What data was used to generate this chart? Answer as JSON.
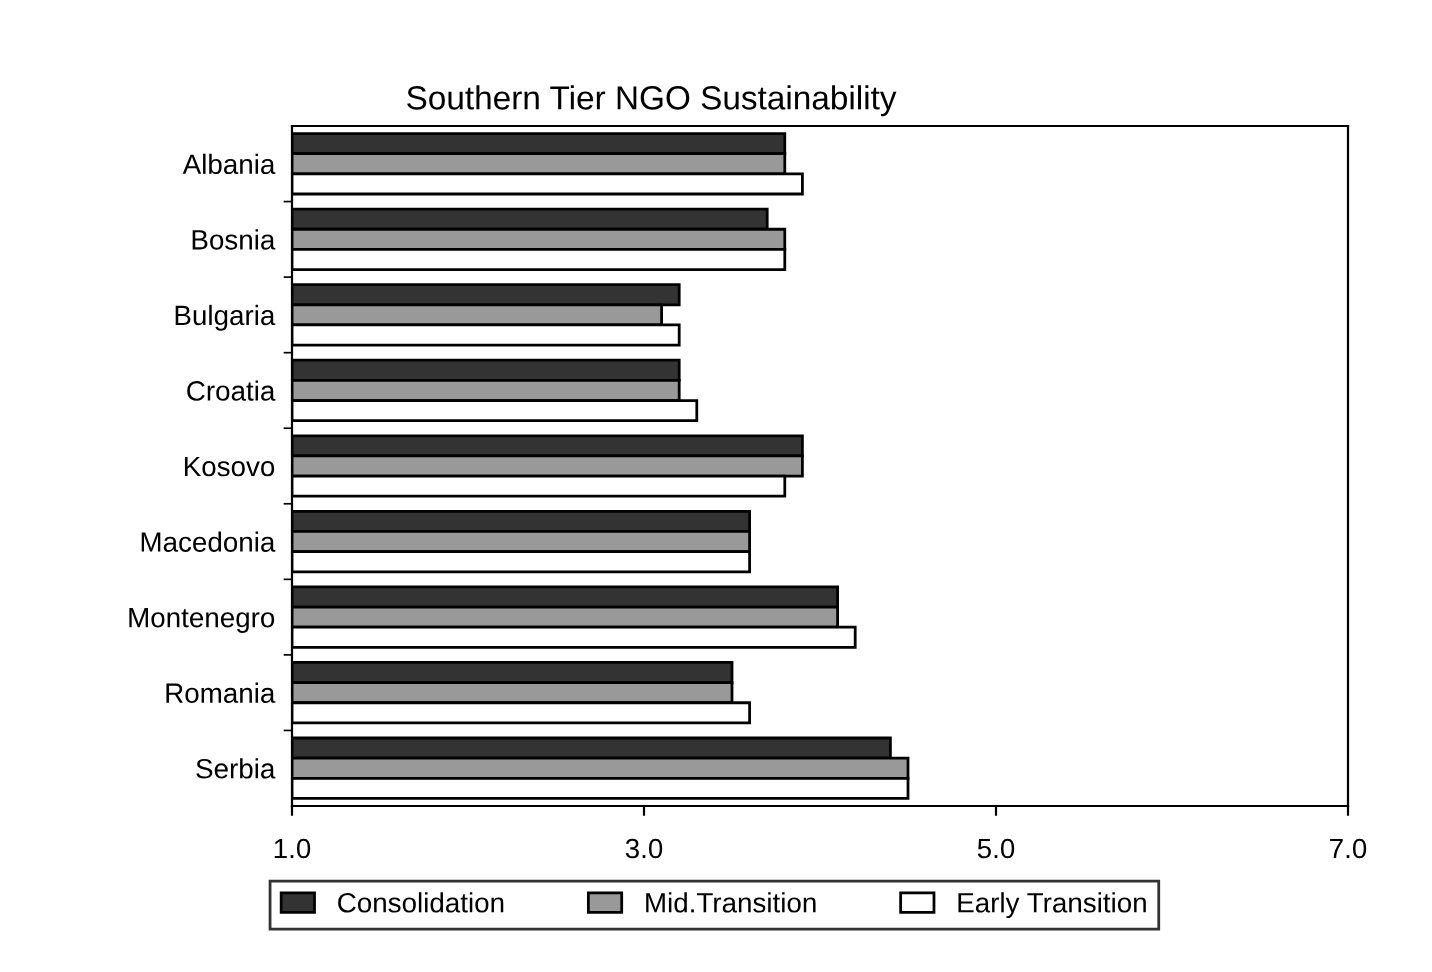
{
  "chart_data": {
    "type": "bar",
    "orientation": "horizontal",
    "title": "Southern Tier NGO Sustainability",
    "categories": [
      "Albania",
      "Bosnia",
      "Bulgaria",
      "Croatia",
      "Kosovo",
      "Macedonia",
      "Montenegro",
      "Romania",
      "Serbia"
    ],
    "series": [
      {
        "name": "Consolidation",
        "color": "#333333",
        "values": [
          3.8,
          3.7,
          3.2,
          3.2,
          3.9,
          3.6,
          4.1,
          3.5,
          4.4
        ]
      },
      {
        "name": "Mid.Transition",
        "color": "#999999",
        "values": [
          3.8,
          3.8,
          3.1,
          3.2,
          3.9,
          3.6,
          4.1,
          3.5,
          4.5
        ]
      },
      {
        "name": "Early Transition",
        "color": "#ffffff",
        "values": [
          3.9,
          3.8,
          3.2,
          3.3,
          3.8,
          3.6,
          4.2,
          3.6,
          4.5
        ]
      }
    ],
    "xlim": [
      1.0,
      7.0
    ],
    "xticks": [
      {
        "value": 1,
        "label": "1.0"
      },
      {
        "value": 3,
        "label": "3.0"
      },
      {
        "value": 5,
        "label": "5.0"
      },
      {
        "value": 7,
        "label": "7.0"
      }
    ],
    "grid": false,
    "legend": "bottom"
  }
}
